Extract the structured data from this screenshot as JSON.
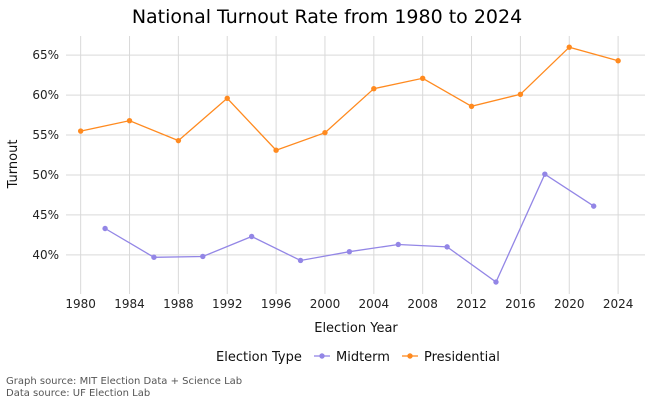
{
  "chart_data": {
    "type": "line",
    "title": "National Turnout Rate from 1980 to 2024",
    "xlabel": "Election Year",
    "ylabel": "Turnout",
    "x_ticks": [
      "1980",
      "1984",
      "1988",
      "1992",
      "1996",
      "2000",
      "2004",
      "2008",
      "2012",
      "2016",
      "2020",
      "2024"
    ],
    "y_ticks": [
      "40%",
      "45%",
      "50%",
      "55%",
      "60%",
      "65%"
    ],
    "xlim": [
      1978.8,
      2026.2
    ],
    "ylim": [
      35.1,
      67.4
    ],
    "grid": true,
    "legend": {
      "title": "Election Type",
      "placement": "bottom"
    },
    "series": [
      {
        "name": "Midterm",
        "color": "#9386e6",
        "x": [
          1982,
          1986,
          1990,
          1994,
          1998,
          2002,
          2006,
          2010,
          2014,
          2018,
          2022
        ],
        "y": [
          43.3,
          39.7,
          39.8,
          42.3,
          39.3,
          40.4,
          41.3,
          41.0,
          36.6,
          50.1,
          46.1
        ]
      },
      {
        "name": "Presidential",
        "color": "#ff8a1f",
        "x": [
          1980,
          1984,
          1988,
          1992,
          1996,
          2000,
          2004,
          2008,
          2012,
          2016,
          2020,
          2024
        ],
        "y": [
          55.5,
          56.8,
          54.3,
          59.6,
          53.1,
          55.3,
          60.8,
          62.1,
          58.6,
          60.1,
          66.0,
          64.3
        ]
      }
    ]
  },
  "sources": {
    "graph": "Graph source: MIT Election Data + Science Lab",
    "data": "Data source: UF Election Lab"
  }
}
